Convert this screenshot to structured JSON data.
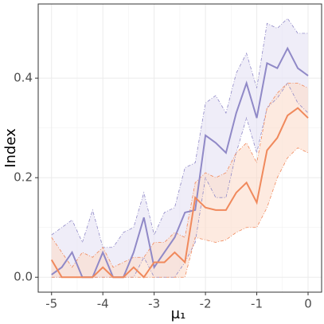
{
  "chart_data": {
    "type": "line",
    "xlabel": "μ₁",
    "ylabel": "Index",
    "x": [
      -5,
      -4.8,
      -4.6,
      -4.4,
      -4.2,
      -4,
      -3.8,
      -3.6,
      -3.4,
      -3.2,
      -3,
      -2.8,
      -2.6,
      -2.4,
      -2.2,
      -2,
      -1.8,
      -1.6,
      -1.4,
      -1.2,
      -1,
      -0.8,
      -0.6,
      -0.4,
      -0.2,
      0
    ],
    "series": [
      {
        "color": "#9089c7",
        "band_color": "#e4e1f3",
        "values": [
          0.005,
          0.02,
          0.05,
          0.0,
          0.0,
          0.05,
          0.0,
          0.0,
          0.05,
          0.12,
          0.02,
          0.05,
          0.08,
          0.13,
          0.135,
          0.285,
          0.27,
          0.25,
          0.33,
          0.39,
          0.32,
          0.43,
          0.42,
          0.46,
          0.42,
          0.405
        ],
        "upper": [
          0.085,
          0.1,
          0.115,
          0.07,
          0.135,
          0.06,
          0.06,
          0.09,
          0.1,
          0.17,
          0.085,
          0.13,
          0.14,
          0.22,
          0.23,
          0.35,
          0.365,
          0.33,
          0.41,
          0.45,
          0.38,
          0.51,
          0.5,
          0.52,
          0.49,
          0.49
        ],
        "lower": [
          0,
          0,
          0,
          0,
          0,
          0,
          0,
          0,
          0,
          0.04,
          0,
          0,
          0,
          0.03,
          0.07,
          0.2,
          0.16,
          0.16,
          0.25,
          0.32,
          0.25,
          0.34,
          0.36,
          0.39,
          0.35,
          0.33
        ]
      },
      {
        "color": "#f0895c",
        "band_color": "#fcdccc",
        "values": [
          0.035,
          0.0,
          0.0,
          0.0,
          0.0,
          0.02,
          0.0,
          0.0,
          0.02,
          0.0,
          0.03,
          0.03,
          0.05,
          0.03,
          0.16,
          0.14,
          0.135,
          0.135,
          0.17,
          0.19,
          0.15,
          0.255,
          0.28,
          0.325,
          0.34,
          0.32
        ],
        "upper": [
          0.08,
          0.05,
          0.02,
          0.05,
          0.04,
          0.06,
          0.02,
          0.03,
          0.04,
          0.04,
          0.07,
          0.07,
          0.09,
          0.08,
          0.19,
          0.21,
          0.2,
          0.21,
          0.25,
          0.27,
          0.23,
          0.34,
          0.37,
          0.39,
          0.39,
          0.38
        ],
        "lower": [
          0,
          0,
          0,
          0,
          0,
          0,
          0,
          0,
          0,
          0,
          0,
          0,
          0,
          0,
          0.08,
          0.075,
          0.07,
          0.075,
          0.09,
          0.1,
          0.1,
          0.14,
          0.2,
          0.24,
          0.26,
          0.25
        ]
      }
    ],
    "xlim": [
      -5.26,
      0.264
    ],
    "ylim": [
      -0.03,
      0.549
    ],
    "xticks": [
      -5,
      -4,
      -3,
      -2,
      -1,
      0
    ],
    "yticks": [
      {
        "value": 0,
        "label": "0.0"
      },
      0.2,
      0.4
    ],
    "grid": true
  }
}
